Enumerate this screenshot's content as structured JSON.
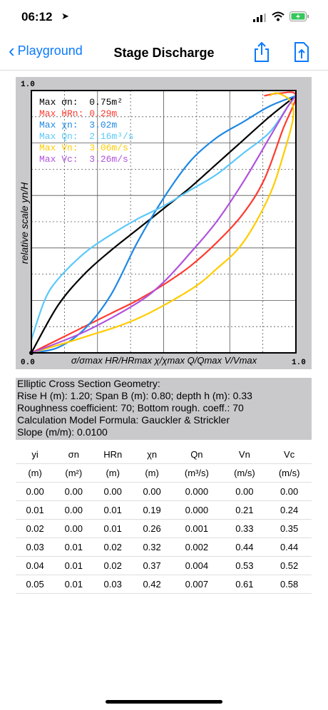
{
  "status": {
    "time": "06:12"
  },
  "nav": {
    "back_label": "Playground",
    "title": "Stage Discharge"
  },
  "chart_data": {
    "type": "line",
    "xlabel": "σ/σmax HR/HRmax χ/χmax Q/Qmax V/Vmax",
    "ylabel": "relative scale yn/H",
    "xlim": [
      0,
      1
    ],
    "ylim": [
      0,
      1
    ],
    "tick_labels": {
      "x_min": "0.0",
      "x_max": "1.0",
      "y_min": "0.0",
      "y_max": "1.0"
    },
    "grid": true,
    "legend_location": "top-left",
    "legend": [
      {
        "label": "Max σn:  0.75m²",
        "color": "#000000"
      },
      {
        "label": "Max HRn: 0.29m",
        "color": "#ff3b30"
      },
      {
        "label": "Max χn:  3.02m",
        "color": "#1e88e5"
      },
      {
        "label": "Max Qn:  2.16m³/s",
        "color": "#5ac8fa"
      },
      {
        "label": "Max Vn:  3.06m/s",
        "color": "#ffcc00"
      },
      {
        "label": "Max Vc:  3.26m/s",
        "color": "#af52de"
      }
    ],
    "series": [
      {
        "color": "#000000",
        "points": [
          [
            0,
            0
          ],
          [
            0.1,
            0.18
          ],
          [
            0.2,
            0.3
          ],
          [
            0.3,
            0.39
          ],
          [
            0.4,
            0.47
          ],
          [
            0.5,
            0.55
          ],
          [
            0.6,
            0.63
          ],
          [
            0.7,
            0.72
          ],
          [
            0.8,
            0.81
          ],
          [
            0.9,
            0.9
          ],
          [
            1,
            0.98
          ]
        ]
      },
      {
        "color": "#ff3b30",
        "points": [
          [
            0,
            0
          ],
          [
            0.1,
            0.05
          ],
          [
            0.2,
            0.1
          ],
          [
            0.3,
            0.15
          ],
          [
            0.4,
            0.2
          ],
          [
            0.5,
            0.26
          ],
          [
            0.6,
            0.33
          ],
          [
            0.7,
            0.42
          ],
          [
            0.8,
            0.53
          ],
          [
            0.88,
            0.66
          ],
          [
            0.95,
            0.85
          ],
          [
            1,
            0.98
          ],
          [
            0.94,
            0.99
          ],
          [
            0.88,
            0.98
          ]
        ]
      },
      {
        "color": "#1e88e5",
        "points": [
          [
            0,
            0
          ],
          [
            0.1,
            0.02
          ],
          [
            0.2,
            0.09
          ],
          [
            0.3,
            0.22
          ],
          [
            0.4,
            0.42
          ],
          [
            0.5,
            0.59
          ],
          [
            0.6,
            0.73
          ],
          [
            0.7,
            0.82
          ],
          [
            0.8,
            0.88
          ],
          [
            0.9,
            0.94
          ],
          [
            1,
            0.98
          ]
        ]
      },
      {
        "color": "#5ac8fa",
        "points": [
          [
            0,
            0.05
          ],
          [
            0.05,
            0.2
          ],
          [
            0.1,
            0.28
          ],
          [
            0.2,
            0.38
          ],
          [
            0.3,
            0.45
          ],
          [
            0.4,
            0.51
          ],
          [
            0.5,
            0.56
          ],
          [
            0.6,
            0.62
          ],
          [
            0.7,
            0.68
          ],
          [
            0.8,
            0.76
          ],
          [
            0.9,
            0.84
          ],
          [
            0.97,
            0.94
          ],
          [
            1,
            0.98
          ]
        ]
      },
      {
        "color": "#ffcc00",
        "points": [
          [
            0,
            0
          ],
          [
            0.2,
            0.06
          ],
          [
            0.4,
            0.13
          ],
          [
            0.6,
            0.24
          ],
          [
            0.7,
            0.32
          ],
          [
            0.8,
            0.42
          ],
          [
            0.9,
            0.6
          ],
          [
            0.96,
            0.78
          ],
          [
            0.99,
            0.9
          ],
          [
            0.98,
            0.96
          ],
          [
            0.93,
            0.99
          ],
          [
            0.9,
            0.98
          ]
        ]
      },
      {
        "color": "#af52de",
        "points": [
          [
            0,
            0
          ],
          [
            0.2,
            0.08
          ],
          [
            0.4,
            0.19
          ],
          [
            0.5,
            0.27
          ],
          [
            0.6,
            0.38
          ],
          [
            0.7,
            0.5
          ],
          [
            0.8,
            0.65
          ],
          [
            0.9,
            0.82
          ],
          [
            0.97,
            0.94
          ],
          [
            1,
            0.98
          ]
        ]
      }
    ]
  },
  "info": {
    "line1": "Elliptic Cross Section Geometry:",
    "line2": "Rise H (m): 1.20; Span B (m): 0.80; depth h (m): 0.33",
    "line3": "Roughness coefficient: 70; Bottom rough. coeff.: 70",
    "line4": "Calculation Model Formula: Gauckler & Strickler",
    "line5": "Slope (m/m): 0.0100"
  },
  "table": {
    "headers": [
      "yi",
      "σn",
      "HRn",
      "χn",
      "Qn",
      "Vn",
      "Vc"
    ],
    "units": [
      "(m)",
      "(m²)",
      "(m)",
      "(m)",
      "(m³/s)",
      "(m/s)",
      "(m/s)"
    ],
    "rows": [
      [
        "0.00",
        "0.00",
        "0.00",
        "0.00",
        "0.000",
        "0.00",
        "0.00"
      ],
      [
        "0.01",
        "0.00",
        "0.01",
        "0.19",
        "0.000",
        "0.21",
        "0.24"
      ],
      [
        "0.02",
        "0.00",
        "0.01",
        "0.26",
        "0.001",
        "0.33",
        "0.35"
      ],
      [
        "0.03",
        "0.01",
        "0.02",
        "0.32",
        "0.002",
        "0.44",
        "0.44"
      ],
      [
        "0.04",
        "0.01",
        "0.02",
        "0.37",
        "0.004",
        "0.53",
        "0.52"
      ],
      [
        "0.05",
        "0.01",
        "0.03",
        "0.42",
        "0.007",
        "0.61",
        "0.58"
      ]
    ]
  }
}
